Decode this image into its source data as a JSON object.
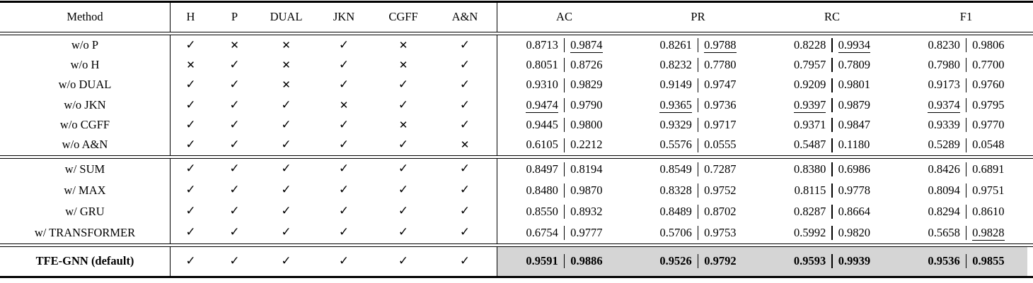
{
  "header": {
    "method": "Method",
    "flags": [
      "H",
      "P",
      "DUAL",
      "JKN",
      "CGFF",
      "A&N"
    ],
    "metrics": [
      "AC",
      "PR",
      "RC",
      "F1"
    ]
  },
  "glyphs": {
    "check": "✓",
    "cross": "✕"
  },
  "colors": {
    "highlight": "#d5d5d5",
    "rule": "#000000"
  },
  "sections": [
    {
      "name": "component-ablation",
      "rows": [
        {
          "method": "w/o P",
          "flags": [
            1,
            0,
            0,
            1,
            0,
            1
          ],
          "metrics": [
            [
              "0.8713",
              "0.9874",
              0,
              1
            ],
            [
              "0.8261",
              "0.9788",
              0,
              1
            ],
            [
              "0.8228",
              "0.9934",
              0,
              1
            ],
            [
              "0.8230",
              "0.9806",
              0,
              0
            ]
          ]
        },
        {
          "method": "w/o H",
          "flags": [
            0,
            1,
            0,
            1,
            0,
            1
          ],
          "metrics": [
            [
              "0.8051",
              "0.8726",
              0,
              0
            ],
            [
              "0.8232",
              "0.7780",
              0,
              0
            ],
            [
              "0.7957",
              "0.7809",
              0,
              0
            ],
            [
              "0.7980",
              "0.7700",
              0,
              0
            ]
          ]
        },
        {
          "method": "w/o DUAL",
          "flags": [
            1,
            1,
            0,
            1,
            1,
            1
          ],
          "metrics": [
            [
              "0.9310",
              "0.9829",
              0,
              0
            ],
            [
              "0.9149",
              "0.9747",
              0,
              0
            ],
            [
              "0.9209",
              "0.9801",
              0,
              0
            ],
            [
              "0.9173",
              "0.9760",
              0,
              0
            ]
          ]
        },
        {
          "method": "w/o JKN",
          "flags": [
            1,
            1,
            1,
            0,
            1,
            1
          ],
          "metrics": [
            [
              "0.9474",
              "0.9790",
              1,
              0
            ],
            [
              "0.9365",
              "0.9736",
              1,
              0
            ],
            [
              "0.9397",
              "0.9879",
              1,
              0
            ],
            [
              "0.9374",
              "0.9795",
              1,
              0
            ]
          ]
        },
        {
          "method": "w/o CGFF",
          "flags": [
            1,
            1,
            1,
            1,
            0,
            1
          ],
          "metrics": [
            [
              "0.9445",
              "0.9800",
              0,
              0
            ],
            [
              "0.9329",
              "0.9717",
              0,
              0
            ],
            [
              "0.9371",
              "0.9847",
              0,
              0
            ],
            [
              "0.9339",
              "0.9770",
              0,
              0
            ]
          ]
        },
        {
          "method": "w/o A&N",
          "flags": [
            1,
            1,
            1,
            1,
            1,
            0
          ],
          "metrics": [
            [
              "0.6105",
              "0.2212",
              0,
              0
            ],
            [
              "0.5576",
              "0.0555",
              0,
              0
            ],
            [
              "0.5487",
              "0.1180",
              0,
              0
            ],
            [
              "0.5289",
              "0.0548",
              0,
              0
            ]
          ]
        }
      ]
    },
    {
      "name": "aggregation-variants",
      "rows": [
        {
          "method": "w/ SUM",
          "flags": [
            1,
            1,
            1,
            1,
            1,
            1
          ],
          "metrics": [
            [
              "0.8497",
              "0.8194",
              0,
              0
            ],
            [
              "0.8549",
              "0.7287",
              0,
              0
            ],
            [
              "0.8380",
              "0.6986",
              0,
              0
            ],
            [
              "0.8426",
              "0.6891",
              0,
              0
            ]
          ]
        },
        {
          "method": "w/ MAX",
          "flags": [
            1,
            1,
            1,
            1,
            1,
            1
          ],
          "metrics": [
            [
              "0.8480",
              "0.9870",
              0,
              0
            ],
            [
              "0.8328",
              "0.9752",
              0,
              0
            ],
            [
              "0.8115",
              "0.9778",
              0,
              0
            ],
            [
              "0.8094",
              "0.9751",
              0,
              0
            ]
          ]
        },
        {
          "method": "w/ GRU",
          "flags": [
            1,
            1,
            1,
            1,
            1,
            1
          ],
          "metrics": [
            [
              "0.8550",
              "0.8932",
              0,
              0
            ],
            [
              "0.8489",
              "0.8702",
              0,
              0
            ],
            [
              "0.8287",
              "0.8664",
              0,
              0
            ],
            [
              "0.8294",
              "0.8610",
              0,
              0
            ]
          ]
        },
        {
          "method": "w/ TRANSFORMER",
          "flags": [
            1,
            1,
            1,
            1,
            1,
            1
          ],
          "metrics": [
            [
              "0.6754",
              "0.9777",
              0,
              0
            ],
            [
              "0.5706",
              "0.9753",
              0,
              0
            ],
            [
              "0.5992",
              "0.9820",
              0,
              0
            ],
            [
              "0.5658",
              "0.9828",
              0,
              1
            ]
          ]
        }
      ]
    },
    {
      "name": "default-model",
      "highlight": true,
      "rows": [
        {
          "method": "TFE-GNN (default)",
          "bold": true,
          "flags": [
            1,
            1,
            1,
            1,
            1,
            1
          ],
          "metrics": [
            [
              "0.9591",
              "0.9886",
              0,
              0
            ],
            [
              "0.9526",
              "0.9792",
              0,
              0
            ],
            [
              "0.9593",
              "0.9939",
              0,
              0
            ],
            [
              "0.9536",
              "0.9855",
              0,
              0
            ]
          ]
        }
      ]
    }
  ]
}
